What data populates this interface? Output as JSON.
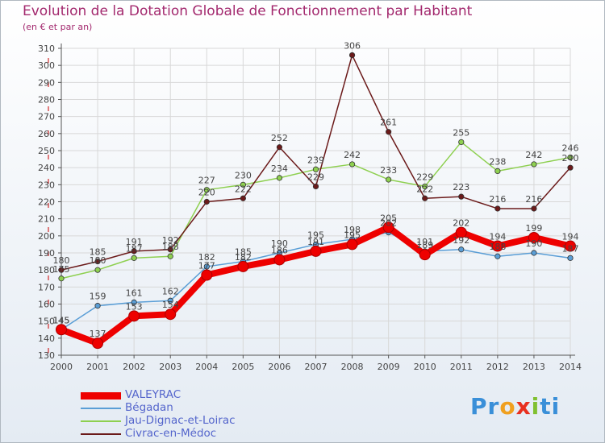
{
  "title": "Evolution de la Dotation Globale de Fonctionnement par Habitant",
  "subtitle": "(en € et par an)",
  "logo": {
    "text": "Proxiti",
    "letters": [
      "P",
      "r",
      "o",
      "x",
      "i",
      "t",
      "i"
    ],
    "colors": [
      "#3a8fd8",
      "#3a8fd8",
      "#f0a020",
      "#e83020",
      "#80c030",
      "#3a8fd8",
      "#3a8fd8"
    ]
  },
  "colors": {
    "title": "#a3296e",
    "grid": "#d8d8d8",
    "axis": "#555555",
    "axis_red_marks": "#cc0000",
    "background_top": "#ffffff",
    "background_bottom": "#e8eef5",
    "legend_text": "#5566cc",
    "label_text": "#444444"
  },
  "chart_data": {
    "type": "line",
    "title": "Evolution de la Dotation Globale de Fonctionnement par Habitant",
    "subtitle": "(en € et par an)",
    "xlabel": "",
    "ylabel": "",
    "x": [
      "2000",
      "2001",
      "2002",
      "2003",
      "2004",
      "2005",
      "2006",
      "2007",
      "2008",
      "2009",
      "2010",
      "2011",
      "2012",
      "2013",
      "2014"
    ],
    "ylim": [
      130,
      310
    ],
    "yticks": [
      130,
      140,
      150,
      160,
      170,
      180,
      190,
      200,
      210,
      220,
      230,
      240,
      250,
      260,
      270,
      280,
      290,
      300,
      310
    ],
    "grid": true,
    "legend_placement": "bottom-left",
    "series": [
      {
        "name": "VALEYRAC",
        "color": "#ee0000",
        "highlight": true,
        "values": [
          145,
          137,
          153,
          154,
          177,
          182,
          186,
          191,
          195,
          205,
          189,
          202,
          194,
          199,
          194
        ],
        "labels": [
          "145",
          "137",
          "153",
          "154",
          "177",
          "182",
          "186",
          "191",
          "195",
          "205",
          "189",
          "202",
          "194",
          "199",
          "194"
        ]
      },
      {
        "name": "Bégadan",
        "color": "#5a9ed6",
        "highlight": false,
        "values": [
          145,
          159,
          161,
          162,
          182,
          185,
          190,
          195,
          198,
          202,
          191,
          192,
          188,
          190,
          187
        ],
        "labels": [
          "145",
          "159",
          "161",
          "162",
          "182",
          "185",
          "190",
          "195",
          "198",
          "202",
          "191",
          "192",
          "188",
          "190",
          "187"
        ]
      },
      {
        "name": "Jau-Dignac-et-Loirac",
        "color": "#8ed050",
        "highlight": false,
        "values": [
          175,
          180,
          187,
          188,
          227,
          230,
          234,
          239,
          242,
          233,
          229,
          255,
          238,
          242,
          246
        ],
        "labels": [
          "175",
          "180",
          "187",
          "188",
          "227",
          "230",
          "234",
          "239",
          "242",
          "233",
          "229",
          "255",
          "238",
          "242",
          "246"
        ]
      },
      {
        "name": "Civrac-en-Médoc",
        "color": "#6b1a1a",
        "highlight": false,
        "values": [
          180,
          185,
          191,
          192,
          220,
          222,
          252,
          229,
          306,
          261,
          222,
          223,
          216,
          216,
          240
        ],
        "labels": [
          "180",
          "185",
          "191",
          "192",
          "220",
          "222",
          "252",
          "229",
          "306",
          "261",
          "222",
          "223",
          "216",
          "216",
          "240"
        ]
      }
    ]
  }
}
